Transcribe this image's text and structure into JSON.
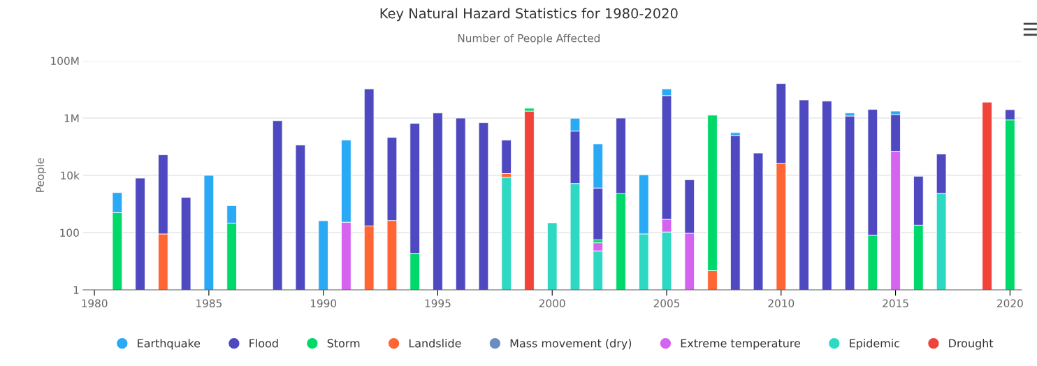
{
  "chart_data": {
    "type": "bar",
    "stacked": true,
    "log": true,
    "title": "Key Natural Hazard Statistics for 1980-2020",
    "subtitle": "Number of People Affected",
    "ylabel": "People",
    "x": [
      1981,
      1982,
      1983,
      1984,
      1985,
      1986,
      1987,
      1988,
      1989,
      1990,
      1991,
      1992,
      1993,
      1994,
      1995,
      1996,
      1997,
      1998,
      1999,
      2000,
      2001,
      2002,
      2003,
      2004,
      2005,
      2006,
      2007,
      2008,
      2009,
      2010,
      2011,
      2012,
      2013,
      2014,
      2015,
      2016,
      2017,
      2018,
      2019,
      2020
    ],
    "xlim": [
      1979.5,
      2020.5
    ],
    "xticks": [
      1980,
      1985,
      1990,
      1995,
      2000,
      2005,
      2010,
      2015,
      2020
    ],
    "ylim": [
      1,
      100000000
    ],
    "yticks": [
      1,
      100,
      {
        "value": 10000,
        "label": "10k"
      },
      {
        "value": 1000000,
        "label": "1M"
      },
      {
        "value": 100000000,
        "label": "100M"
      }
    ],
    "grid": "y",
    "legend": "bottom",
    "series": [
      {
        "name": "Drought",
        "color": "#f0433a",
        "values": [
          null,
          null,
          null,
          null,
          null,
          null,
          null,
          null,
          null,
          null,
          null,
          null,
          null,
          null,
          null,
          null,
          null,
          null,
          1750000,
          null,
          null,
          null,
          null,
          null,
          null,
          null,
          null,
          null,
          null,
          null,
          null,
          null,
          null,
          null,
          null,
          null,
          null,
          null,
          3600000,
          null
        ]
      },
      {
        "name": "Epidemic",
        "color": "#2ed9c3",
        "values": [
          null,
          null,
          null,
          null,
          null,
          null,
          null,
          null,
          null,
          null,
          null,
          null,
          null,
          null,
          null,
          null,
          null,
          8500,
          null,
          220,
          5200,
          23,
          null,
          90,
          105,
          null,
          null,
          null,
          null,
          null,
          null,
          null,
          null,
          null,
          null,
          null,
          2350,
          null,
          null,
          null
        ]
      },
      {
        "name": "Extreme temperature",
        "color": "#d463f0",
        "values": [
          null,
          null,
          null,
          null,
          null,
          null,
          null,
          null,
          null,
          null,
          230,
          null,
          null,
          null,
          null,
          null,
          null,
          null,
          null,
          null,
          null,
          21,
          null,
          null,
          185,
          95,
          null,
          null,
          null,
          null,
          null,
          null,
          null,
          null,
          69000,
          null,
          null,
          null,
          null,
          null
        ]
      },
      {
        "name": "Mass movement (dry)",
        "color": "#6b8ec0",
        "values": [
          null,
          null,
          null,
          null,
          null,
          null,
          null,
          null,
          null,
          null,
          null,
          null,
          null,
          null,
          null,
          null,
          null,
          null,
          null,
          null,
          null,
          null,
          null,
          null,
          null,
          null,
          null,
          null,
          null,
          null,
          null,
          null,
          null,
          null,
          null,
          null,
          null,
          null,
          null,
          null
        ]
      },
      {
        "name": "Landslide",
        "color": "#ff6633",
        "values": [
          null,
          null,
          90,
          null,
          null,
          null,
          null,
          null,
          null,
          null,
          null,
          170,
          265,
          null,
          null,
          null,
          null,
          3000,
          null,
          null,
          null,
          null,
          null,
          null,
          null,
          null,
          4.7,
          null,
          null,
          26000,
          null,
          null,
          null,
          null,
          null,
          null,
          null,
          null,
          null,
          null
        ]
      },
      {
        "name": "Storm",
        "color": "#00d96a",
        "values": [
          500,
          null,
          null,
          null,
          null,
          215,
          null,
          null,
          null,
          null,
          null,
          null,
          null,
          19,
          null,
          null,
          null,
          null,
          450000,
          null,
          null,
          12,
          2300,
          null,
          null,
          null,
          1260000,
          null,
          null,
          null,
          null,
          null,
          null,
          81,
          null,
          182,
          null,
          null,
          null,
          860000
        ]
      },
      {
        "name": "Flood",
        "color": "#4e49c0",
        "values": [
          null,
          8000,
          52000,
          1700,
          null,
          null,
          null,
          810000,
          114000,
          null,
          null,
          10400000,
          210000,
          650000,
          1500000,
          1000000,
          690000,
          158000,
          null,
          null,
          345000,
          3540,
          1000000,
          null,
          6100000,
          6900,
          null,
          240000,
          60000,
          16000000,
          4300000,
          3900000,
          1180000,
          2000000,
          1250000,
          9100,
          53000,
          null,
          null,
          1100000
        ]
      },
      {
        "name": "Earthquake",
        "color": "#2aa9f5",
        "values": [
          2000,
          null,
          null,
          null,
          10000,
          660,
          null,
          null,
          null,
          260,
          170000,
          null,
          null,
          null,
          null,
          null,
          null,
          null,
          null,
          null,
          640000,
          122000,
          null,
          10400,
          4300000,
          null,
          null,
          70000,
          null,
          null,
          null,
          null,
          320000,
          null,
          430000,
          null,
          null,
          null,
          null,
          null
        ]
      }
    ]
  }
}
